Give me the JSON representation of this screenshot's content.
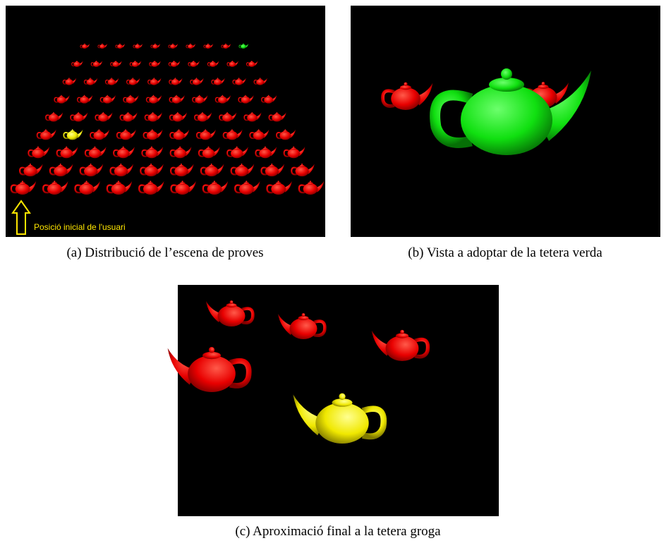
{
  "figure": {
    "panels": [
      {
        "caption": "(a) Distribució de l’escena de proves",
        "annotation": "Posició inicial de l'usuari"
      },
      {
        "caption": "(b) Vista a adoptar de la tetera verda"
      },
      {
        "caption": "(c) Aproximació final a la tetera groga"
      }
    ]
  }
}
